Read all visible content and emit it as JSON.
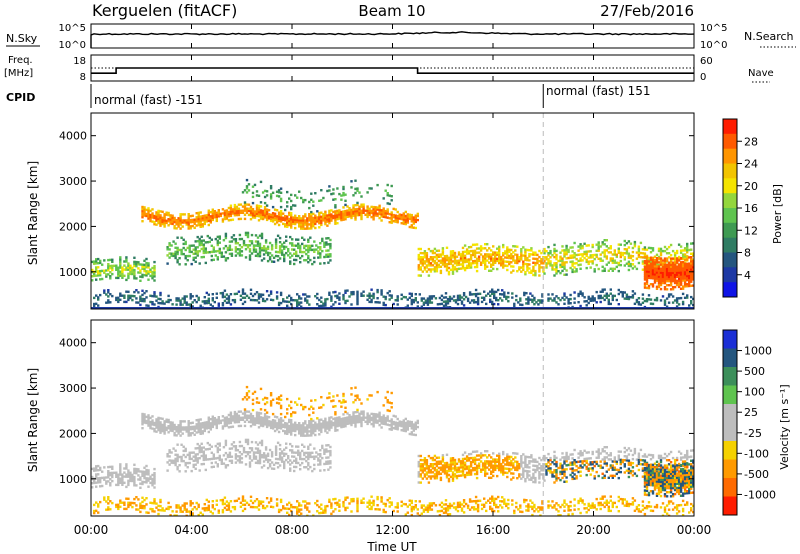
{
  "header": {
    "station": "Kerguelen (fitACF)",
    "beam": "Beam 10",
    "date": "27/Feb/2016"
  },
  "panels": {
    "noise": {
      "left_label": "N.Sky",
      "right_label": "N.Search",
      "left_ticks": [
        "10^5",
        "10^0"
      ],
      "right_ticks": [
        "10^5",
        "10^0"
      ]
    },
    "freq": {
      "label_line1": "Freq.",
      "label_line2": "[MHz]",
      "ticks": [
        "18",
        "8"
      ],
      "right_label": "Nave",
      "right_ticks": [
        "60",
        "0"
      ]
    },
    "cpid": {
      "label": "CPID",
      "segments": [
        "normal (fast) -151",
        "normal (fast) 151"
      ]
    }
  },
  "axes": {
    "ylabel": "Slant Range [km]",
    "yticks": [
      "4000",
      "3000",
      "2000",
      "1000"
    ],
    "xlabel": "Time UT",
    "xticks": [
      "00:00",
      "04:00",
      "08:00",
      "12:00",
      "16:00",
      "20:00",
      "00:00"
    ]
  },
  "colorbars": {
    "power": {
      "label": "Power [dB]",
      "ticks": [
        "28",
        "24",
        "20",
        "16",
        "12",
        "8",
        "4"
      ],
      "colors": [
        "#ff1c00",
        "#ff5a00",
        "#ff9500",
        "#f2c400",
        "#f4e400",
        "#93d63c",
        "#5fc44f",
        "#3e9a52",
        "#2f7c63",
        "#24567f",
        "#1d39a4",
        "#0f14e6"
      ]
    },
    "velocity": {
      "label": "Velocity [m s⁻¹]",
      "ticks": [
        "1000",
        "500",
        "100",
        "25",
        "-25",
        "-100",
        "-500",
        "-1000"
      ],
      "colors": [
        "#1b2fd6",
        "#24567f",
        "#3c8f5a",
        "#5fc44f",
        "#bdbdbd",
        "#bdbdbd",
        "#f5d100",
        "#ff9a00",
        "#ff6a00",
        "#ff1c00"
      ]
    }
  },
  "chart_data": {
    "type": "heatmap",
    "x_range": [
      "00:00",
      "24:00"
    ],
    "y_range_km": [
      180,
      4500
    ],
    "cpid_change_time": "18:00",
    "frequency_mhz": [
      {
        "from": "00:00",
        "to": "01:00",
        "value": 11
      },
      {
        "from": "01:00",
        "to": "13:00",
        "value": 13
      },
      {
        "from": "13:00",
        "to": "24:00",
        "value": 11
      }
    ],
    "power_bands": [
      {
        "from": 2.0,
        "to": 13.0,
        "range_km": [
          2000,
          2400
        ],
        "mean_power_db": 26
      },
      {
        "from": 3.0,
        "to": 9.5,
        "range_km": [
          1150,
          1900
        ],
        "mean_power_db": 12
      },
      {
        "from": 13.0,
        "to": 18.0,
        "range_km": [
          800,
          1700
        ],
        "mean_power_db": 20
      },
      {
        "from": 18.0,
        "to": 24.0,
        "range_km": [
          400,
          1800
        ],
        "mean_power_db": 18
      },
      {
        "from": 0.0,
        "to": 24.0,
        "range_km": [
          200,
          550
        ],
        "mean_power_db": 6
      }
    ]
  }
}
